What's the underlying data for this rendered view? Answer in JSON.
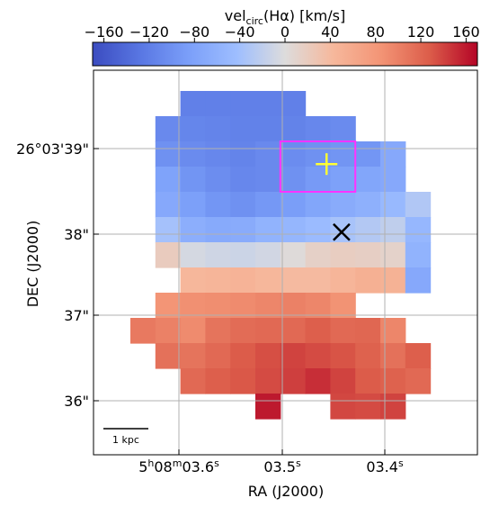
{
  "chart_data": {
    "type": "heatmap",
    "title": "",
    "colorbar": {
      "label": "vel",
      "label_sub": "circ",
      "label_rest": "(Hα) [km/s]",
      "range": [
        -170,
        170
      ],
      "colormap": "coolwarm",
      "ticks": [
        -160,
        -120,
        -80,
        -40,
        0,
        40,
        80,
        120,
        160
      ],
      "tick_labels": [
        "−160",
        "−120",
        "−80",
        "−40",
        "0",
        "40",
        "80",
        "120",
        "160"
      ]
    },
    "xlabel": "RA (J2000)",
    "ylabel": "DEC (J2000)",
    "x_ticks": [
      {
        "main": "5",
        "sup1": "h",
        "mid": "08",
        "sup2": "m",
        "rest": "03.6",
        "sup3": "s"
      },
      {
        "main": "",
        "sup1": "",
        "mid": "",
        "sup2": "",
        "rest": "03.5",
        "sup3": "s"
      },
      {
        "main": "",
        "sup1": "",
        "mid": "",
        "sup2": "",
        "rest": "03.4",
        "sup3": "s"
      }
    ],
    "y_ticks": [
      "26°03'39\"",
      "38\"",
      "37\"",
      "36\""
    ],
    "grid": true,
    "scalebar_label": "1 kpc",
    "grid_rows": 15,
    "grid_cols": 13,
    "velocity_map": [
      [
        null,
        null,
        null,
        null,
        null,
        null,
        null,
        null,
        null,
        null,
        null,
        null,
        null
      ],
      [
        null,
        null,
        null,
        null,
        null,
        null,
        null,
        null,
        null,
        null,
        null,
        null,
        null
      ],
      [
        null,
        null,
        -118,
        -118,
        -118,
        -118,
        -118,
        null,
        null,
        null,
        null,
        null,
        null
      ],
      [
        null,
        -108,
        -112,
        -114,
        -116,
        -116,
        -115,
        -110,
        -106,
        null,
        null,
        null,
        null
      ],
      [
        null,
        -100,
        -106,
        -110,
        -114,
        -108,
        -105,
        -100,
        -96,
        -95,
        -72,
        null,
        null
      ],
      [
        null,
        -80,
        -96,
        -104,
        -110,
        -108,
        -100,
        -90,
        -82,
        -76,
        -72,
        null,
        null
      ],
      [
        null,
        -72,
        -84,
        -95,
        -100,
        -92,
        -86,
        -76,
        -68,
        -62,
        -50,
        -30,
        null
      ],
      [
        null,
        -38,
        -64,
        -70,
        -68,
        -58,
        -54,
        -46,
        -36,
        -28,
        -20,
        -52,
        null
      ],
      [
        null,
        20,
        -6,
        -10,
        -12,
        -8,
        2,
        14,
        18,
        16,
        12,
        -58,
        null
      ],
      [
        null,
        null,
        44,
        46,
        48,
        44,
        40,
        40,
        46,
        52,
        50,
        -72,
        null
      ],
      [
        null,
        84,
        88,
        90,
        92,
        96,
        100,
        96,
        86,
        null,
        null,
        null,
        null
      ],
      [
        106,
        100,
        92,
        110,
        116,
        118,
        118,
        126,
        118,
        120,
        96,
        null,
        null
      ],
      [
        null,
        112,
        110,
        118,
        128,
        134,
        140,
        136,
        132,
        124,
        112,
        126,
        null
      ],
      [
        null,
        null,
        118,
        126,
        130,
        136,
        142,
        150,
        140,
        128,
        124,
        118,
        null
      ],
      [
        null,
        null,
        null,
        null,
        null,
        160,
        null,
        null,
        138,
        136,
        140,
        null,
        null
      ]
    ],
    "markers": [
      {
        "type": "cross",
        "label": "",
        "color": "#ffff33",
        "ra_index": 7.85,
        "dec_index": 4.9
      },
      {
        "type": "x",
        "label": "",
        "color": "#000000",
        "ra_index": 8.45,
        "dec_index": 7.6
      }
    ],
    "aperture": {
      "color": "#ff33ff",
      "col_start": 6,
      "col_end": 9,
      "row_start": 4,
      "row_end": 6
    }
  }
}
